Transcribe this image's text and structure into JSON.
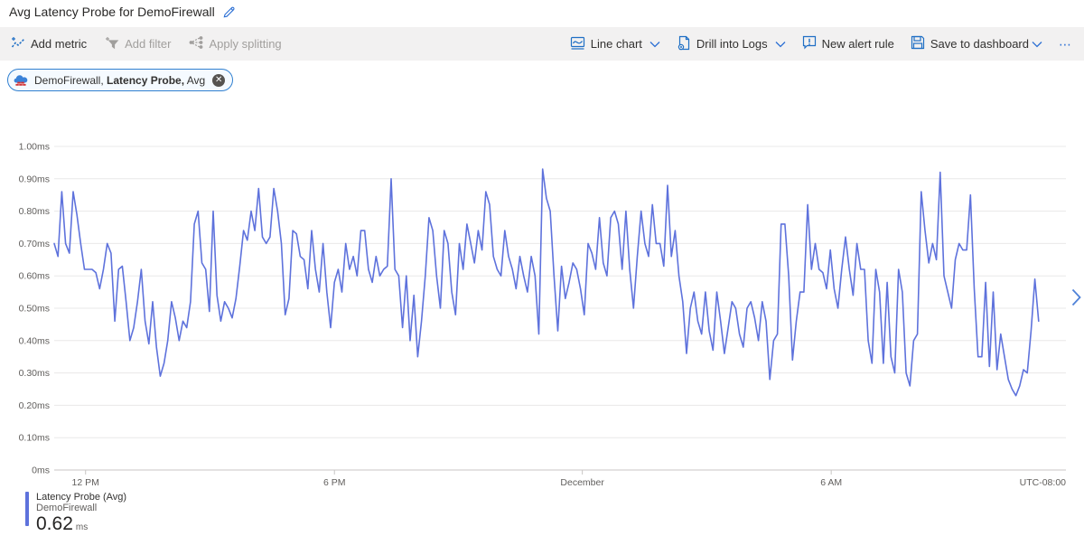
{
  "header": {
    "title": "Avg Latency Probe for DemoFirewall"
  },
  "toolbar": {
    "left": [
      {
        "label": "Add metric",
        "enabled": true
      },
      {
        "label": "Add filter",
        "enabled": false
      },
      {
        "label": "Apply splitting",
        "enabled": false
      }
    ],
    "right": [
      {
        "label": "Line chart",
        "has_dropdown": true
      },
      {
        "label": "Drill into Logs",
        "has_dropdown": true
      },
      {
        "label": "New alert rule",
        "has_dropdown": false
      },
      {
        "label": "Save to dashboard",
        "has_dropdown": true
      },
      {
        "label": "⋯",
        "has_dropdown": false
      }
    ]
  },
  "metric_pill": {
    "resource": "DemoFirewall, ",
    "metric": "Latency Probe,",
    "aggregation": " Avg",
    "close_glyph": "✕"
  },
  "icons": [
    "add-metric-icon",
    "add-filter-icon",
    "apply-splitting-icon",
    "line-chart-icon",
    "drill-logs-icon",
    "new-alert-icon",
    "save-dashboard-icon",
    "chevron-down-icon",
    "more-icon",
    "edit-pencil-icon",
    "firewall-icon",
    "close-icon",
    "chevron-right-icon"
  ],
  "colors": {
    "line": "#5e72dc",
    "grid": "#e9e8e8",
    "axis_baseline": "#c8c6c4",
    "axis_text": "#605e5c",
    "toolbar_bg": "#f2f1f1",
    "icon_blue": "#1f6fc5",
    "disabled": "#a19f9d",
    "pill_border": "#2f7fd0",
    "chevron_blue": "#4f82d8"
  },
  "legend": {
    "metric": "Latency Probe (Avg)",
    "resource": "DemoFirewall",
    "value": "0.62",
    "unit": "ms",
    "color": "#5e72dc"
  },
  "chart_data": {
    "type": "line",
    "title": "Avg Latency Probe for DemoFirewall",
    "xlabel": "",
    "ylabel": "",
    "unit": "ms",
    "ylim": [
      0,
      1.0
    ],
    "grid": "horizontal",
    "legend_position": "bottom-left",
    "y_ticks": [
      {
        "label": "1.00ms",
        "value": 1.0
      },
      {
        "label": "0.90ms",
        "value": 0.9
      },
      {
        "label": "0.80ms",
        "value": 0.8
      },
      {
        "label": "0.70ms",
        "value": 0.7
      },
      {
        "label": "0.60ms",
        "value": 0.6
      },
      {
        "label": "0.50ms",
        "value": 0.5
      },
      {
        "label": "0.40ms",
        "value": 0.4
      },
      {
        "label": "0.30ms",
        "value": 0.3
      },
      {
        "label": "0.20ms",
        "value": 0.2
      },
      {
        "label": "0.10ms",
        "value": 0.1
      },
      {
        "label": "0ms",
        "value": 0.0
      }
    ],
    "x_ticks": [
      {
        "label": "12 PM",
        "position": 0.031
      },
      {
        "label": "6 PM",
        "position": 0.277
      },
      {
        "label": "December",
        "position": 0.522
      },
      {
        "label": "6 AM",
        "position": 0.768
      }
    ],
    "x_end_label": "UTC-08:00",
    "line_end_fraction": 0.973,
    "series": [
      {
        "name": "Latency Probe (Avg)",
        "resource": "DemoFirewall",
        "color": "#5e72dc",
        "avg": 0.62,
        "values": [
          0.7,
          0.66,
          0.86,
          0.7,
          0.67,
          0.86,
          0.79,
          0.7,
          0.62,
          0.62,
          0.62,
          0.61,
          0.56,
          0.62,
          0.7,
          0.67,
          0.46,
          0.62,
          0.63,
          0.52,
          0.4,
          0.44,
          0.52,
          0.62,
          0.46,
          0.39,
          0.52,
          0.38,
          0.29,
          0.33,
          0.4,
          0.52,
          0.47,
          0.4,
          0.46,
          0.44,
          0.52,
          0.76,
          0.8,
          0.64,
          0.62,
          0.49,
          0.8,
          0.54,
          0.46,
          0.52,
          0.5,
          0.47,
          0.53,
          0.63,
          0.74,
          0.71,
          0.8,
          0.74,
          0.87,
          0.72,
          0.7,
          0.72,
          0.87,
          0.8,
          0.7,
          0.48,
          0.53,
          0.74,
          0.73,
          0.66,
          0.65,
          0.56,
          0.74,
          0.62,
          0.55,
          0.7,
          0.55,
          0.44,
          0.58,
          0.62,
          0.55,
          0.7,
          0.62,
          0.66,
          0.6,
          0.74,
          0.74,
          0.62,
          0.58,
          0.66,
          0.6,
          0.62,
          0.63,
          0.9,
          0.62,
          0.6,
          0.44,
          0.6,
          0.4,
          0.54,
          0.35,
          0.46,
          0.6,
          0.78,
          0.74,
          0.6,
          0.5,
          0.74,
          0.7,
          0.55,
          0.48,
          0.7,
          0.62,
          0.76,
          0.7,
          0.64,
          0.74,
          0.68,
          0.86,
          0.82,
          0.66,
          0.62,
          0.6,
          0.74,
          0.66,
          0.62,
          0.56,
          0.66,
          0.6,
          0.55,
          0.66,
          0.6,
          0.42,
          0.93,
          0.84,
          0.8,
          0.6,
          0.43,
          0.63,
          0.53,
          0.58,
          0.64,
          0.62,
          0.56,
          0.48,
          0.7,
          0.67,
          0.62,
          0.78,
          0.64,
          0.6,
          0.78,
          0.8,
          0.76,
          0.62,
          0.8,
          0.62,
          0.5,
          0.66,
          0.8,
          0.7,
          0.66,
          0.82,
          0.7,
          0.7,
          0.63,
          0.88,
          0.66,
          0.74,
          0.6,
          0.52,
          0.36,
          0.5,
          0.55,
          0.46,
          0.42,
          0.55,
          0.43,
          0.37,
          0.55,
          0.46,
          0.36,
          0.44,
          0.52,
          0.5,
          0.42,
          0.38,
          0.5,
          0.52,
          0.47,
          0.4,
          0.52,
          0.46,
          0.28,
          0.4,
          0.42,
          0.76,
          0.76,
          0.6,
          0.34,
          0.46,
          0.55,
          0.55,
          0.82,
          0.62,
          0.7,
          0.62,
          0.61,
          0.56,
          0.68,
          0.56,
          0.5,
          0.62,
          0.72,
          0.62,
          0.54,
          0.7,
          0.62,
          0.62,
          0.4,
          0.33,
          0.62,
          0.55,
          0.33,
          0.58,
          0.35,
          0.3,
          0.62,
          0.55,
          0.3,
          0.26,
          0.4,
          0.42,
          0.86,
          0.74,
          0.64,
          0.7,
          0.65,
          0.92,
          0.6,
          0.55,
          0.5,
          0.65,
          0.7,
          0.68,
          0.68,
          0.85,
          0.56,
          0.35,
          0.35,
          0.58,
          0.32,
          0.55,
          0.31,
          0.42,
          0.35,
          0.28,
          0.25,
          0.23,
          0.26,
          0.31,
          0.3,
          0.43,
          0.59,
          0.46
        ]
      }
    ]
  }
}
